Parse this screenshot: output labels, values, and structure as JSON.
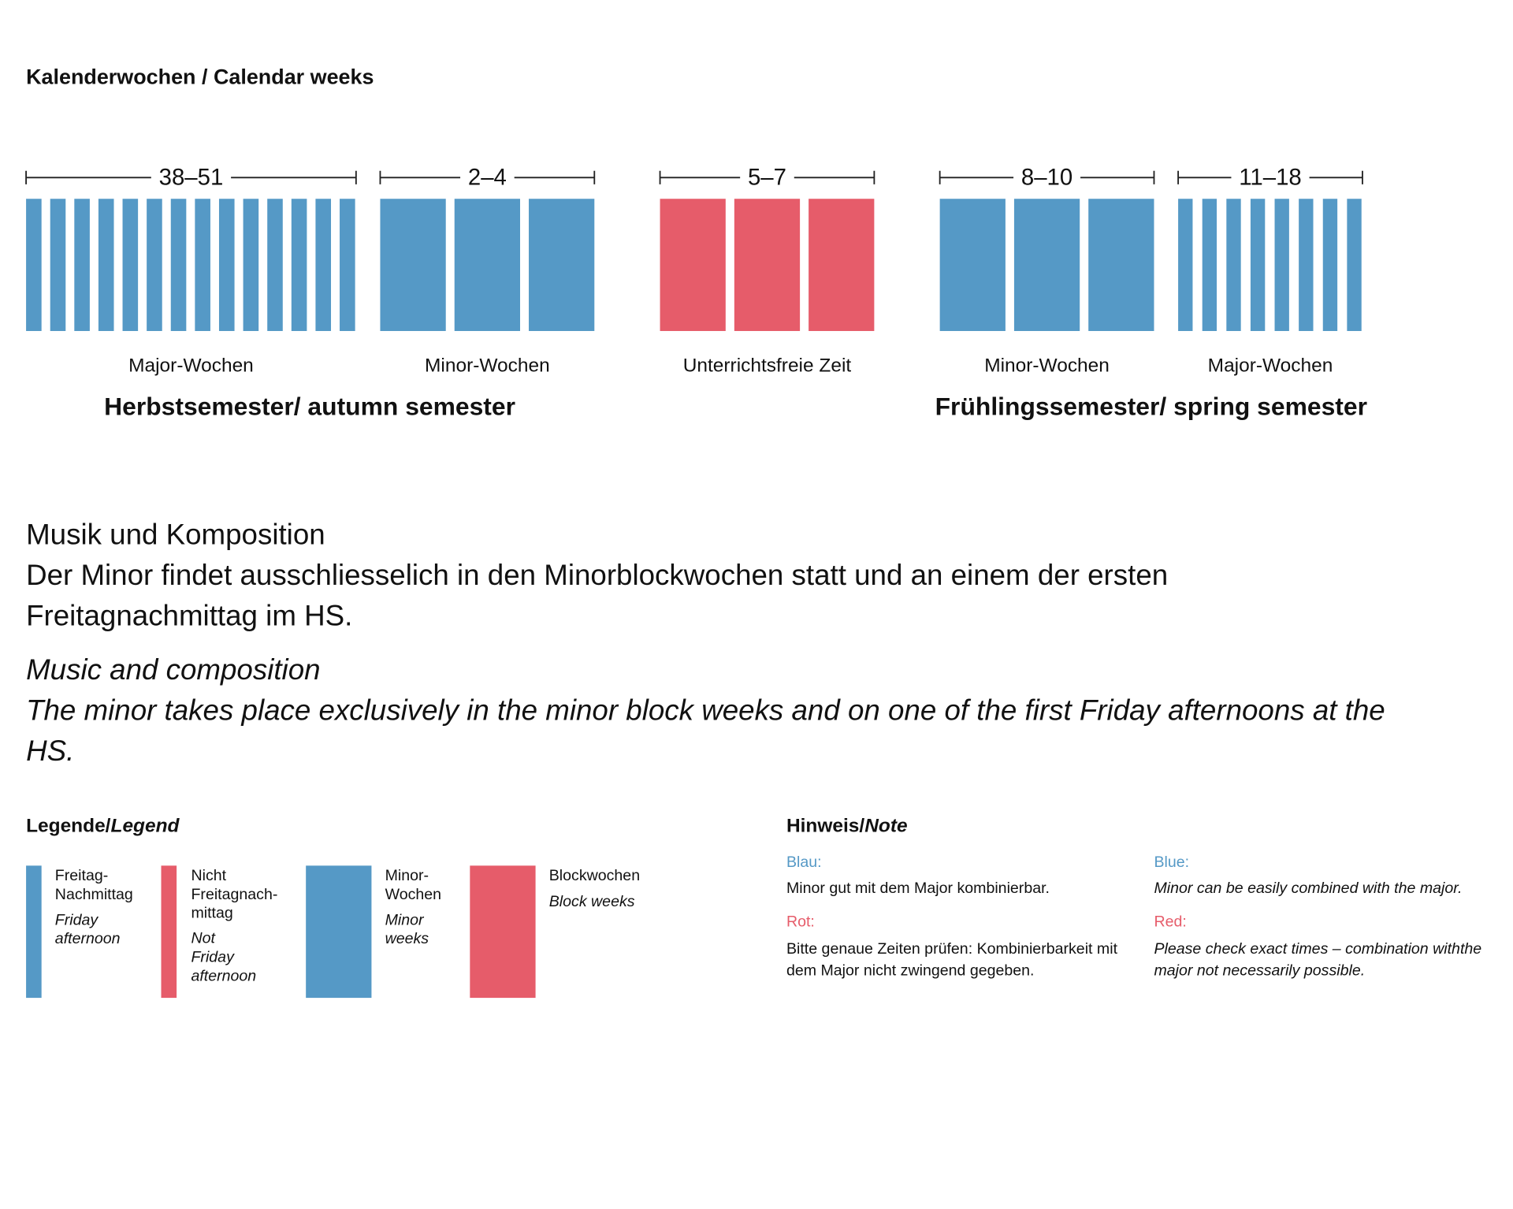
{
  "title": "Kalenderwochen / Calendar weeks",
  "timeline": {
    "groups": [
      {
        "weeks": "38–51",
        "label": "Major-Wochen"
      },
      {
        "weeks": "2–4",
        "label": "Minor-Wochen"
      },
      {
        "weeks": "5–7",
        "label": "Unterrichtsfreie Zeit"
      },
      {
        "weeks": "8–10",
        "label": "Minor-Wochen"
      },
      {
        "weeks": "11–18",
        "label": "Major-Wochen"
      }
    ],
    "semesters": [
      "Herbstsemester/ autumn semester",
      "Frühlingssemester/ spring semester"
    ]
  },
  "description": {
    "german": [
      "Musik und Komposition",
      "Der Minor findet ausschliesselich in den Minorblockwochen statt und an einem der ersten",
      "Freitagnachmittag im HS."
    ],
    "english": [
      "Music and composition",
      "The minor takes place exclusively in the minor block weeks and on one of the first Friday afternoons at the",
      "HS."
    ]
  },
  "legend": {
    "title": "Legende/",
    "title_en": "Legend",
    "items": [
      {
        "de": [
          "Freitag-",
          "Nachmittag"
        ],
        "en": [
          "Friday",
          "afternoon"
        ]
      },
      {
        "de": [
          "Nicht",
          "Freitagnach-",
          "mittag"
        ],
        "en": [
          "Not",
          "Friday",
          "afternoon"
        ]
      },
      {
        "de": [
          "Minor-",
          "Wochen"
        ],
        "en": [
          "Minor",
          "weeks"
        ]
      },
      {
        "de": [
          "Blockwochen"
        ],
        "en": [
          "Block weeks"
        ]
      }
    ]
  },
  "note": {
    "title": "Hinweis/",
    "title_en": "Note",
    "columns": [
      {
        "blue_label": "Blau:",
        "blue_text": [
          "Minor gut mit dem Major kombinierbar."
        ],
        "red_label": "Rot:",
        "red_text": [
          "Bitte genaue Zeiten prüfen: Kombinierbarkeit mit",
          "dem Major nicht zwingend gegeben."
        ]
      },
      {
        "blue_label": "Blue:",
        "blue_text": [
          "Minor can be easily combined with the major."
        ],
        "red_label": "Red:",
        "red_text": [
          "Please check exact times – combination withthe",
          "major not necessarily possible."
        ]
      }
    ]
  }
}
